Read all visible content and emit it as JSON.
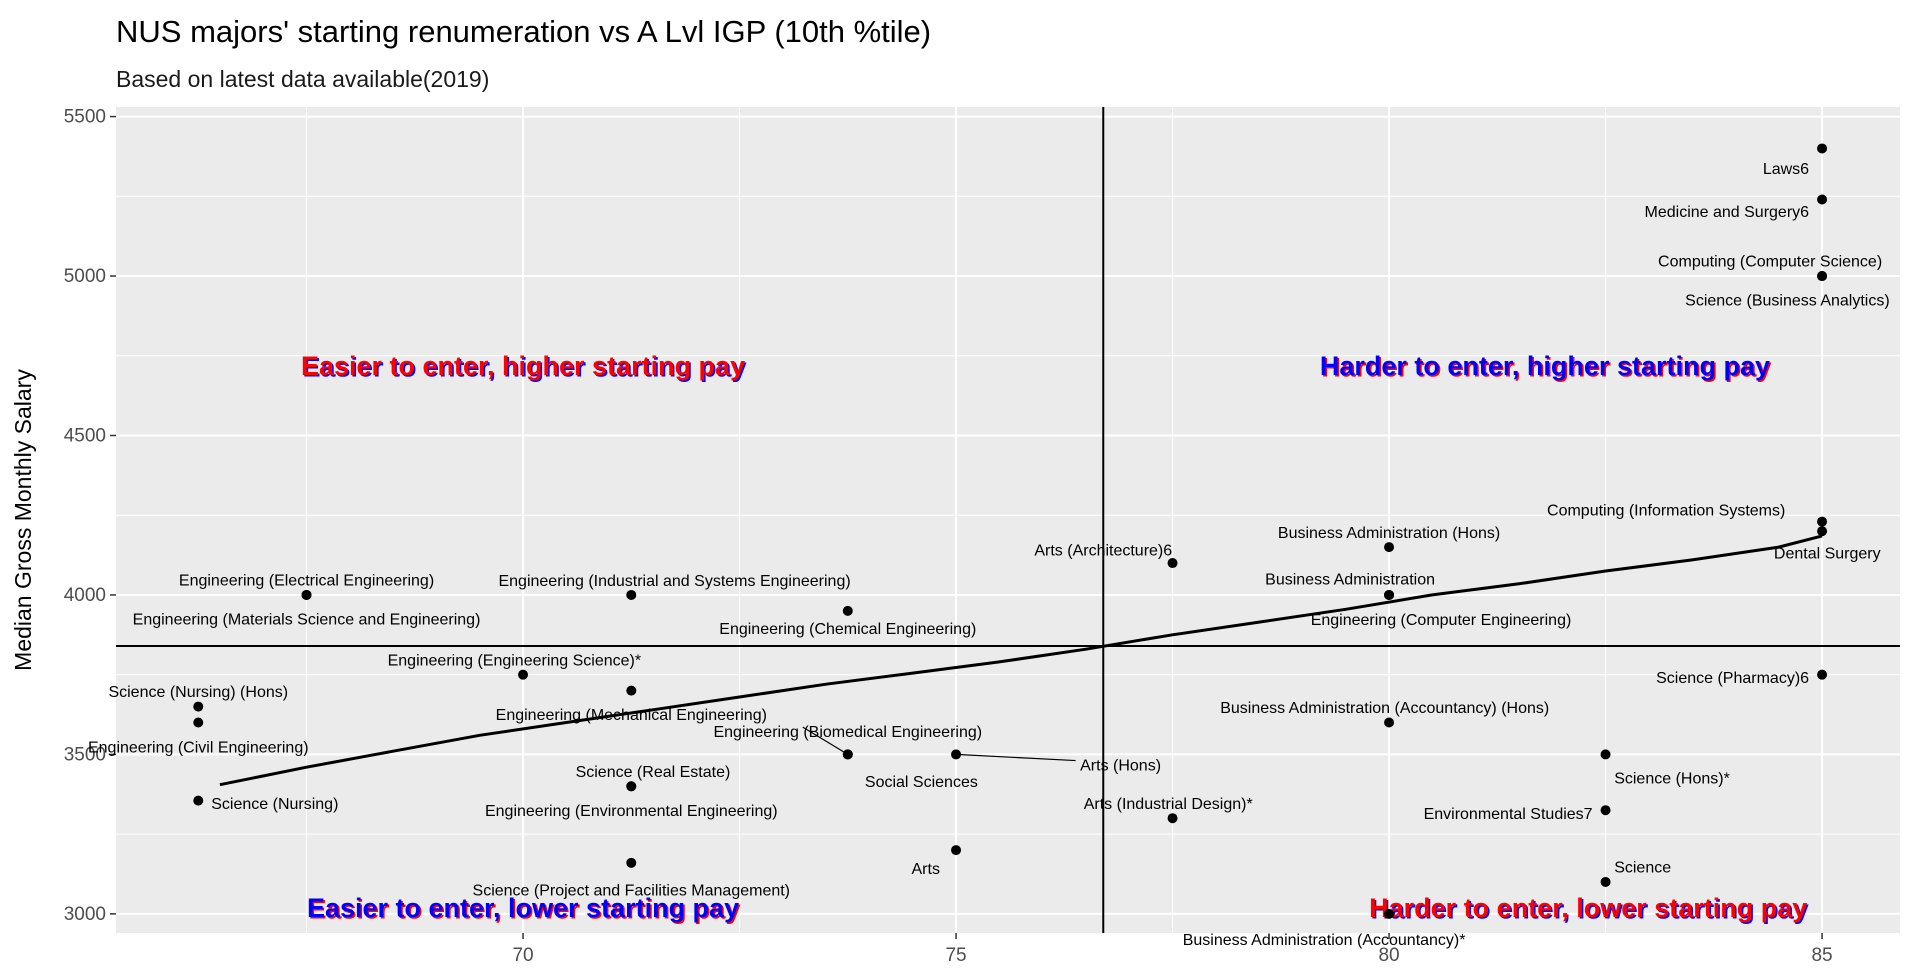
{
  "title": "NUS majors' starting renumeration vs A Lvl IGP (10th %tile)",
  "subtitle": "Based on latest data available(2019)",
  "chart_data": {
    "type": "scatter",
    "title": "NUS majors' starting renumeration vs A Lvl IGP (10th %tile)",
    "subtitle": "Based on latest data available(2019)",
    "xlabel": "",
    "ylabel": "Median Gross Monthly Salary",
    "xlim": [
      65.3,
      85.9
    ],
    "ylim": [
      2940,
      5530
    ],
    "xticks": [
      70,
      75,
      80,
      85
    ],
    "yticks": [
      3000,
      3500,
      4000,
      4500,
      5000,
      5500
    ],
    "grid": true,
    "vline_x": 76.7,
    "hline_y": 3840,
    "colors": {
      "panel": "#ebebeb",
      "grid": "#ffffff",
      "point": "#000000",
      "red": "#ff0000",
      "blue": "#0000ff"
    },
    "trend_line": {
      "x": [
        66.5,
        67.5,
        68.5,
        69.5,
        70.5,
        71.5,
        72.5,
        73.5,
        74.5,
        75.5,
        76.5,
        77.5,
        78.5,
        79.5,
        80.5,
        81.5,
        82.5,
        83.5,
        84.5,
        85.0
      ],
      "y": [
        3405,
        3460,
        3510,
        3560,
        3600,
        3640,
        3680,
        3720,
        3755,
        3790,
        3830,
        3875,
        3915,
        3955,
        4000,
        4035,
        4075,
        4110,
        4150,
        4185
      ]
    },
    "quadrant_labels": [
      {
        "text": "Easier to enter, higher starting pay",
        "x": 70,
        "y": 4690,
        "color": "#ff0000",
        "shadow": "#0000ff"
      },
      {
        "text": "Harder to enter, higher starting pay",
        "x": 81.8,
        "y": 4690,
        "color": "#0000ff",
        "shadow": "#ff0000"
      },
      {
        "text": "Easier to enter, lower starting pay",
        "x": 70,
        "y": 2990,
        "color": "#0000ff",
        "shadow": "#ff0000"
      },
      {
        "text": "Harder to enter, lower starting pay",
        "x": 82.3,
        "y": 2990,
        "color": "#ff0000",
        "shadow": "#0000ff"
      }
    ],
    "points": [
      {
        "x": 85,
        "y": 5400,
        "label": "Laws6",
        "lx": 84.85,
        "ly": 5335,
        "anchor": "end"
      },
      {
        "x": 85,
        "y": 5240,
        "label": "Medicine and  Surgery6",
        "lx": 84.85,
        "ly": 5200,
        "anchor": "end"
      },
      {
        "x": 85,
        "y": 5000,
        "label": "Computing (Computer Science)",
        "lx": 84.4,
        "ly": 5045,
        "anchor": "middle"
      },
      {
        "x": 85,
        "y": 5000,
        "label": "Science (Business Analytics)",
        "lx": 84.6,
        "ly": 4923,
        "anchor": "middle"
      },
      {
        "x": 85,
        "y": 4230,
        "label": "Computing (Information Systems)",
        "lx": 83.2,
        "ly": 4265,
        "anchor": "middle"
      },
      {
        "x": 85,
        "y": 4200,
        "label": "Dental Surgery",
        "lx": 85.06,
        "ly": 4130,
        "anchor": "middle"
      },
      {
        "x": 85,
        "y": 3750,
        "label": "Science (Pharmacy)6",
        "lx": 84.85,
        "ly": 3740,
        "anchor": "end"
      },
      {
        "x": 80,
        "y": 4150,
        "label": "Business Administration (Hons)",
        "lx": 80,
        "ly": 4195,
        "anchor": "middle"
      },
      {
        "x": 80,
        "y": 4000,
        "label": "Business Administration",
        "lx": 79.55,
        "ly": 4048,
        "anchor": "middle"
      },
      {
        "x": 80,
        "y": 4000,
        "label": "Engineering (Computer Engineering)",
        "lx": 80.6,
        "ly": 3922,
        "anchor": "middle"
      },
      {
        "x": 80,
        "y": 3600,
        "label": "Business Administration (Accountancy) (Hons)",
        "lx": 79.95,
        "ly": 3645,
        "anchor": "middle"
      },
      {
        "x": 80,
        "y": 3000,
        "label": "Business Administration (Accountancy)*",
        "lx": 79.25,
        "ly": 2918,
        "anchor": "middle"
      },
      {
        "x": 82.5,
        "y": 3500,
        "label": "Science (Hons)*",
        "lx": 82.6,
        "ly": 3425,
        "anchor": "start"
      },
      {
        "x": 82.5,
        "y": 3325,
        "label": "Environmental Studies7",
        "lx": 82.35,
        "ly": 3313,
        "anchor": "end"
      },
      {
        "x": 82.5,
        "y": 3100,
        "label": "Science",
        "lx": 82.6,
        "ly": 3145,
        "anchor": "start"
      },
      {
        "x": 77.5,
        "y": 4100,
        "label": "Arts (Architecture)6",
        "lx": 76.7,
        "ly": 4140,
        "anchor": "middle"
      },
      {
        "x": 77.5,
        "y": 3300,
        "label": "Arts (Industrial Design)*",
        "lx": 77.45,
        "ly": 3345,
        "anchor": "middle"
      },
      {
        "x": 75,
        "y": 3500,
        "label": "Arts (Hons)",
        "lx": 76.9,
        "ly": 3465,
        "anchor": "middle",
        "leader": true
      },
      {
        "x": 75,
        "y": 3200,
        "label": "Arts",
        "lx": 74.65,
        "ly": 3140,
        "anchor": "middle"
      },
      {
        "x": 73.75,
        "y": 3950,
        "label": "Engineering (Chemical Engineering)",
        "lx": 73.75,
        "ly": 3893,
        "anchor": "middle"
      },
      {
        "x": 73.75,
        "y": 3500,
        "label": "Engineering (Biomedical Engineering)",
        "lx": 73.75,
        "ly": 3570,
        "anchor": "middle",
        "leader": true
      },
      {
        "x": 73.75,
        "y": 3500,
        "label": "Social Sciences",
        "lx": 74.6,
        "ly": 3413,
        "anchor": "middle"
      },
      {
        "x": 71.25,
        "y": 4000,
        "label": "Engineering (Industrial and Systems Engineering)",
        "lx": 71.75,
        "ly": 4043,
        "anchor": "middle"
      },
      {
        "x": 71.25,
        "y": 3700,
        "label": "Engineering (Mechanical Engineering)",
        "lx": 71.25,
        "ly": 3623,
        "anchor": "middle"
      },
      {
        "x": 71.25,
        "y": 3400,
        "label": "Science (Real Estate)",
        "lx": 71.5,
        "ly": 3445,
        "anchor": "middle"
      },
      {
        "x": 71.25,
        "y": 3400,
        "label": "Engineering (Environmental Engineering)",
        "lx": 71.25,
        "ly": 3323,
        "anchor": "middle"
      },
      {
        "x": 71.25,
        "y": 3160,
        "label": "Science (Project and Facilities Management)",
        "lx": 71.25,
        "ly": 3073,
        "anchor": "middle"
      },
      {
        "x": 70,
        "y": 3750,
        "label": "Engineering (Engineering Science)*",
        "lx": 69.9,
        "ly": 3795,
        "anchor": "middle"
      },
      {
        "x": 67.5,
        "y": 4000,
        "label": "Engineering (Electrical Engineering)",
        "lx": 67.5,
        "ly": 4045,
        "anchor": "middle"
      },
      {
        "x": 67.5,
        "y": 4000,
        "label": "Engineering (Materials Science and Engineering)",
        "lx": 67.5,
        "ly": 3923,
        "anchor": "middle"
      },
      {
        "x": 66.25,
        "y": 3650,
        "label": "Science (Nursing) (Hons)",
        "lx": 66.25,
        "ly": 3695,
        "anchor": "middle"
      },
      {
        "x": 66.25,
        "y": 3600,
        "label": "Engineering (Civil Engineering)",
        "lx": 66.25,
        "ly": 3522,
        "anchor": "middle"
      },
      {
        "x": 66.25,
        "y": 3355,
        "label": "Science (Nursing)",
        "lx": 66.4,
        "ly": 3345,
        "anchor": "start"
      }
    ]
  }
}
